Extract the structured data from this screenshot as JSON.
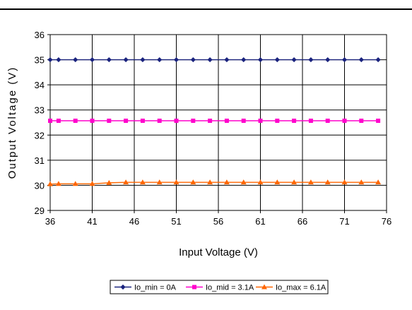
{
  "chart_data": {
    "type": "line",
    "title": "",
    "xlabel": "Input Voltage (V)",
    "ylabel": "Output Voltage (V)",
    "xlim": [
      36,
      76
    ],
    "ylim": [
      29,
      36
    ],
    "x_ticks": [
      "36",
      "41",
      "46",
      "51",
      "56",
      "61",
      "66",
      "71",
      "76"
    ],
    "y_ticks": [
      "29",
      "30",
      "31",
      "32",
      "33",
      "34",
      "35",
      "36"
    ],
    "grid": true,
    "legend": "bottom",
    "x": [
      36,
      37,
      39,
      41,
      43,
      45,
      47,
      49,
      51,
      53,
      55,
      57,
      59,
      61,
      63,
      65,
      67,
      69,
      71,
      73,
      75
    ],
    "series": [
      {
        "name": "Io_min = 0A",
        "color": "#1a237e",
        "marker": "diamond",
        "values": [
          35,
          35,
          35,
          35,
          35,
          35,
          35,
          35,
          35,
          35,
          35,
          35,
          35,
          35,
          35,
          35,
          35,
          35,
          35,
          35,
          35
        ]
      },
      {
        "name": "Io_mid = 3.1A",
        "color": "#ff00cc",
        "marker": "square",
        "values": [
          32.57,
          32.57,
          32.57,
          32.57,
          32.57,
          32.57,
          32.57,
          32.57,
          32.57,
          32.57,
          32.57,
          32.57,
          32.57,
          32.57,
          32.57,
          32.57,
          32.57,
          32.57,
          32.57,
          32.57,
          32.57
        ]
      },
      {
        "name": "Io_max = 6.1A",
        "color": "#ff6600",
        "marker": "triangle",
        "values": [
          30.05,
          30.06,
          30.06,
          30.06,
          30.1,
          30.12,
          30.12,
          30.12,
          30.12,
          30.12,
          30.12,
          30.12,
          30.12,
          30.12,
          30.12,
          30.12,
          30.12,
          30.12,
          30.12,
          30.12,
          30.12
        ]
      }
    ]
  }
}
